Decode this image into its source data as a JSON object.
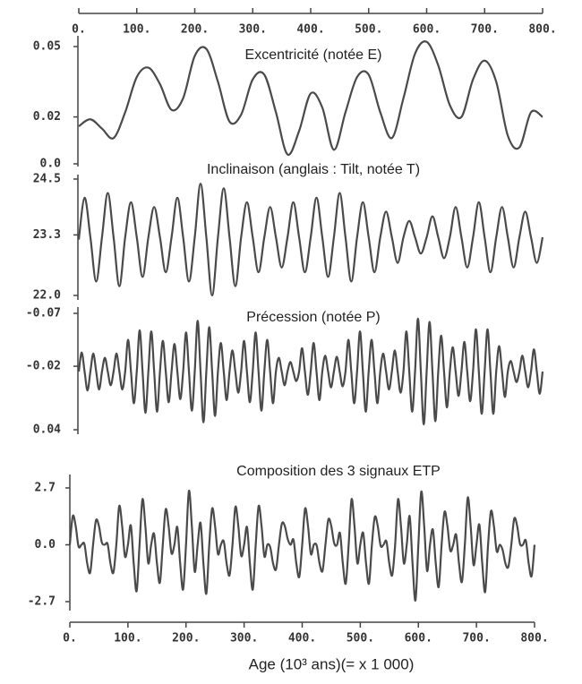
{
  "chart_data": [
    {
      "type": "line",
      "title": "Excentricité (notée E)",
      "color": "#4a4a4a",
      "xlim": [
        0,
        800
      ],
      "ylim": [
        0,
        0.05
      ],
      "yticks": [
        {
          "value": 0,
          "label": "0.0"
        },
        0.02,
        0.05
      ],
      "x": [
        0,
        20,
        40,
        60,
        80,
        100,
        120,
        140,
        160,
        180,
        200,
        220,
        240,
        260,
        280,
        300,
        320,
        340,
        360,
        380,
        400,
        420,
        440,
        460,
        480,
        500,
        520,
        540,
        560,
        580,
        600,
        620,
        640,
        660,
        680,
        700,
        720,
        740,
        760,
        780,
        800
      ],
      "values": [
        0.016,
        0.019,
        0.015,
        0.011,
        0.022,
        0.037,
        0.041,
        0.034,
        0.023,
        0.028,
        0.046,
        0.049,
        0.035,
        0.018,
        0.021,
        0.036,
        0.038,
        0.022,
        0.004,
        0.014,
        0.03,
        0.024,
        0.006,
        0.022,
        0.037,
        0.038,
        0.022,
        0.011,
        0.028,
        0.047,
        0.052,
        0.042,
        0.025,
        0.02,
        0.036,
        0.044,
        0.035,
        0.012,
        0.007,
        0.022,
        0.02
      ]
    },
    {
      "type": "line",
      "title": "Inclinaison (anglais : Tilt, notée T)",
      "color": "#4a4a4a",
      "xlim": [
        0,
        800
      ],
      "ylim": [
        22.0,
        24.5
      ],
      "yticks": [
        {
          "value": 22.0,
          "label": "22.0"
        },
        23.3,
        24.5
      ],
      "x": [
        0,
        10,
        20,
        30,
        40,
        50,
        60,
        70,
        80,
        90,
        100,
        110,
        120,
        130,
        140,
        150,
        160,
        170,
        180,
        190,
        200,
        210,
        220,
        230,
        240,
        250,
        260,
        270,
        280,
        290,
        300,
        310,
        320,
        330,
        340,
        350,
        360,
        370,
        380,
        390,
        400,
        410,
        420,
        430,
        440,
        450,
        460,
        470,
        480,
        490,
        500,
        510,
        520,
        530,
        540,
        550,
        560,
        570,
        580,
        590,
        600,
        610,
        620,
        630,
        640,
        650,
        660,
        670,
        680,
        690,
        700,
        710,
        720,
        730,
        740,
        750,
        760,
        770,
        780,
        790,
        800
      ],
      "values": [
        23.2,
        24.1,
        23.25,
        22.3,
        23.25,
        24.2,
        23.25,
        22.2,
        23.25,
        24.0,
        23.25,
        22.4,
        23.25,
        23.9,
        23.25,
        22.5,
        23.25,
        24.1,
        23.25,
        22.3,
        23.25,
        24.4,
        23.25,
        22.0,
        23.25,
        24.3,
        23.25,
        22.2,
        23.25,
        24.0,
        23.25,
        22.5,
        23.25,
        23.9,
        23.25,
        22.6,
        23.25,
        24.0,
        23.25,
        22.5,
        23.25,
        24.1,
        23.25,
        22.4,
        23.25,
        24.2,
        23.25,
        22.3,
        23.25,
        24.0,
        23.25,
        22.5,
        23.25,
        23.8,
        23.25,
        22.7,
        23.25,
        23.6,
        23.25,
        22.9,
        23.25,
        23.7,
        23.25,
        22.8,
        23.25,
        23.9,
        23.25,
        22.6,
        23.25,
        24.0,
        23.25,
        22.5,
        23.25,
        23.9,
        23.25,
        22.6,
        23.25,
        23.8,
        23.25,
        22.7,
        23.25
      ]
    },
    {
      "type": "line",
      "title": "Précession (notée P)",
      "color": "#4a4a4a",
      "y_inverted": true,
      "xlim": [
        0,
        800
      ],
      "ylim": [
        -0.07,
        0.04
      ],
      "yticks": [
        -0.07,
        -0.02,
        0.04
      ],
      "x": [
        0,
        5,
        10,
        15,
        20,
        25,
        30,
        35,
        40,
        45,
        50,
        55,
        60,
        65,
        70,
        75,
        80,
        85,
        90,
        95,
        100,
        105,
        110,
        115,
        120,
        125,
        130,
        135,
        140,
        145,
        150,
        155,
        160,
        165,
        170,
        175,
        180,
        185,
        190,
        195,
        200,
        205,
        210,
        215,
        220,
        225,
        230,
        235,
        240,
        245,
        250,
        255,
        260,
        265,
        270,
        275,
        280,
        285,
        290,
        295,
        300,
        305,
        310,
        315,
        320,
        325,
        330,
        335,
        340,
        345,
        350,
        355,
        360,
        365,
        370,
        375,
        380,
        385,
        390,
        395,
        400,
        405,
        410,
        415,
        420,
        425,
        430,
        435,
        440,
        445,
        450,
        455,
        460,
        465,
        470,
        475,
        480,
        485,
        490,
        495,
        500,
        505,
        510,
        515,
        520,
        525,
        530,
        535,
        540,
        545,
        550,
        555,
        560,
        565,
        570,
        575,
        580,
        585,
        590,
        595,
        600,
        605,
        610,
        615,
        620,
        625,
        630,
        635,
        640,
        645,
        650,
        655,
        660,
        665,
        670,
        675,
        680,
        685,
        690,
        695,
        700,
        705,
        710,
        715,
        720,
        725,
        730,
        735,
        740,
        745,
        750,
        755,
        760,
        765,
        770,
        775,
        780,
        785,
        790,
        795,
        800
      ],
      "values": [
        -0.015,
        -0.033,
        -0.015,
        0.003,
        -0.015,
        -0.032,
        -0.015,
        0.002,
        -0.015,
        -0.028,
        -0.015,
        -0.002,
        -0.015,
        -0.032,
        -0.015,
        0.002,
        -0.015,
        -0.045,
        -0.015,
        0.015,
        -0.015,
        -0.054,
        -0.015,
        0.024,
        -0.015,
        -0.053,
        -0.015,
        0.023,
        -0.015,
        -0.044,
        -0.015,
        0.014,
        -0.015,
        -0.041,
        -0.015,
        0.011,
        -0.015,
        -0.052,
        -0.015,
        0.022,
        -0.015,
        -0.063,
        -0.015,
        0.033,
        -0.015,
        -0.057,
        -0.015,
        0.027,
        -0.015,
        -0.042,
        -0.015,
        0.012,
        -0.015,
        -0.035,
        -0.015,
        0.005,
        -0.015,
        -0.044,
        -0.015,
        0.014,
        -0.015,
        -0.052,
        -0.015,
        0.022,
        -0.015,
        -0.045,
        -0.015,
        0.015,
        -0.015,
        -0.028,
        -0.015,
        -0.002,
        -0.015,
        -0.024,
        -0.015,
        -0.006,
        -0.015,
        -0.037,
        -0.015,
        0.007,
        -0.015,
        -0.042,
        -0.015,
        0.012,
        -0.015,
        -0.03,
        -0.015,
        0,
        -0.015,
        -0.029,
        -0.015,
        -0.001,
        -0.015,
        -0.045,
        -0.015,
        0.015,
        -0.015,
        -0.053,
        -0.015,
        0.023,
        -0.015,
        -0.045,
        -0.015,
        0.015,
        -0.015,
        -0.032,
        -0.015,
        0.002,
        -0.015,
        -0.035,
        -0.015,
        0.005,
        -0.015,
        -0.053,
        -0.015,
        0.023,
        -0.015,
        -0.065,
        -0.015,
        0.035,
        -0.015,
        -0.062,
        -0.015,
        0.032,
        -0.015,
        -0.049,
        -0.015,
        0.019,
        -0.015,
        -0.038,
        -0.015,
        0.008,
        -0.015,
        -0.043,
        -0.015,
        0.013,
        -0.015,
        -0.055,
        -0.015,
        0.025,
        -0.015,
        -0.055,
        -0.015,
        0.025,
        -0.015,
        -0.039,
        -0.015,
        0.009,
        -0.015,
        -0.025,
        -0.015,
        -0.005,
        -0.015,
        -0.03,
        -0.015,
        0,
        -0.015,
        -0.036,
        -0.015,
        0.006,
        -0.015
      ]
    },
    {
      "type": "line",
      "title": "Composition des 3 signaux ETP",
      "color": "#4a4a4a",
      "xlabel": "Age (10³ ans)(= x 1 000)",
      "xlim": [
        0,
        800
      ],
      "xticks": [
        {
          "value": 0,
          "label": "0."
        },
        {
          "value": 100,
          "label": "100."
        },
        {
          "value": 200,
          "label": "200."
        },
        {
          "value": 300,
          "label": "300."
        },
        {
          "value": 400,
          "label": "400."
        },
        {
          "value": 500,
          "label": "500."
        },
        {
          "value": 600,
          "label": "600."
        },
        {
          "value": 700,
          "label": "700."
        },
        {
          "value": 800,
          "label": "800."
        }
      ],
      "ylim": [
        -2.7,
        2.7
      ],
      "yticks": [
        -2.7,
        {
          "value": 0,
          "label": "0.0"
        },
        2.7
      ],
      "x": [
        0,
        5,
        10,
        15,
        20,
        25,
        30,
        35,
        40,
        45,
        50,
        55,
        60,
        65,
        70,
        75,
        80,
        85,
        90,
        95,
        100,
        105,
        110,
        115,
        120,
        125,
        130,
        135,
        140,
        145,
        150,
        155,
        160,
        165,
        170,
        175,
        180,
        185,
        190,
        195,
        200,
        205,
        210,
        215,
        220,
        225,
        230,
        235,
        240,
        245,
        250,
        255,
        260,
        265,
        270,
        275,
        280,
        285,
        290,
        295,
        300,
        305,
        310,
        315,
        320,
        325,
        330,
        335,
        340,
        345,
        350,
        355,
        360,
        365,
        370,
        375,
        380,
        385,
        390,
        395,
        400,
        405,
        410,
        415,
        420,
        425,
        430,
        435,
        440,
        445,
        450,
        455,
        460,
        465,
        470,
        475,
        480,
        485,
        490,
        495,
        500,
        505,
        510,
        515,
        520,
        525,
        530,
        535,
        540,
        545,
        550,
        555,
        560,
        565,
        570,
        575,
        580,
        585,
        590,
        595,
        600,
        605,
        610,
        615,
        620,
        625,
        630,
        635,
        640,
        645,
        650,
        655,
        660,
        665,
        670,
        675,
        680,
        685,
        690,
        695,
        700,
        705,
        710,
        715,
        720,
        725,
        730,
        735,
        740,
        745,
        750,
        755,
        760,
        765,
        770,
        775,
        780,
        785,
        790,
        795,
        800
      ],
      "values": [
        0,
        1.36,
        0.9,
        -0.08,
        0,
        0.04,
        -0.9,
        -1.32,
        0,
        1.16,
        0.9,
        0.12,
        0,
        0.04,
        -0.9,
        -1.32,
        0,
        1.84,
        0.9,
        -0.56,
        0,
        0.92,
        -0.9,
        -2.2,
        0,
        2.16,
        0.9,
        -0.88,
        0,
        0.52,
        -0.9,
        -1.8,
        0,
        1.68,
        0.9,
        -0.4,
        0,
        0.84,
        -0.9,
        -2.12,
        0,
        2.56,
        0.9,
        -1.28,
        0,
        1.04,
        -0.9,
        -2.32,
        0,
        1.72,
        0.9,
        -0.44,
        0,
        0.16,
        -0.9,
        -1.44,
        0,
        1.8,
        0.9,
        -0.52,
        0,
        0.84,
        -0.9,
        -2.12,
        0,
        1.84,
        0.9,
        -0.56,
        0,
        -0.12,
        -0.9,
        -1.16,
        0,
        1.0,
        0.9,
        0.28,
        0,
        0.24,
        -0.9,
        -1.52,
        0,
        1.72,
        0.9,
        -0.44,
        0,
        -0.04,
        -0.9,
        -1.24,
        0,
        1.2,
        0.9,
        0.08,
        0,
        0.56,
        -0.9,
        -1.84,
        0,
        2.16,
        0.9,
        -0.88,
        0,
        0.56,
        -0.9,
        -1.84,
        0,
        1.32,
        0.9,
        -0.04,
        0,
        0.16,
        -0.9,
        -1.44,
        0,
        2.16,
        0.9,
        -0.88,
        0,
        1.36,
        -0.9,
        -2.64,
        0,
        2.52,
        0.9,
        -1.24,
        0,
        0.72,
        -0.9,
        -2.0,
        0,
        1.56,
        0.9,
        -0.28,
        0,
        0.48,
        -0.9,
        -1.76,
        0,
        2.24,
        0.9,
        -0.96,
        0,
        0.96,
        -0.9,
        -2.24,
        0,
        1.6,
        0.9,
        -0.32,
        0,
        -0.24,
        -0.9,
        -1.04,
        0,
        1.24,
        0.9,
        0.04,
        0,
        0.2,
        -0.9,
        -1.48,
        0
      ]
    }
  ]
}
